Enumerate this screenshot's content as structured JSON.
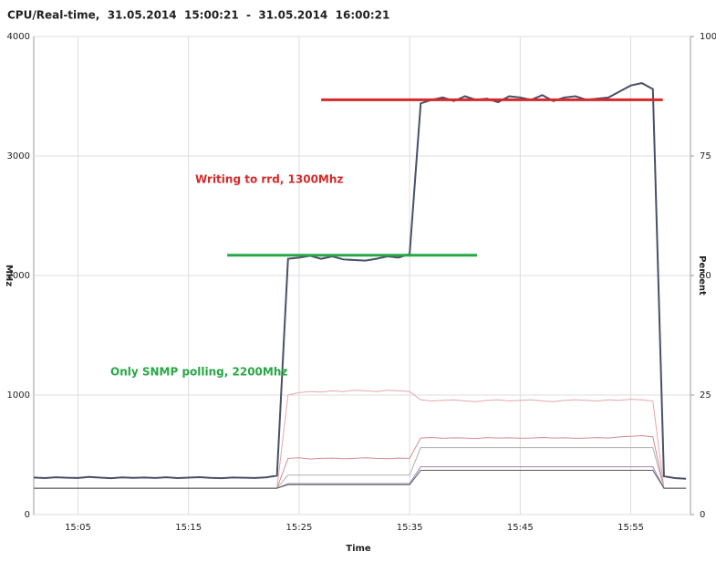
{
  "chart_data": {
    "type": "line",
    "title": "CPU/Real-time,  31.05.2014  15:00:21  -  31.05.2014  16:00:21",
    "y_label": "MHz",
    "y2_label": "Percent",
    "x_label": "Time",
    "xlim": [
      1,
      60.4
    ],
    "xticks": [
      {
        "value": 5,
        "label": "15:05"
      },
      {
        "value": 15,
        "label": "15:15"
      },
      {
        "value": 25,
        "label": "15:25"
      },
      {
        "value": 35,
        "label": "15:35"
      },
      {
        "value": 45,
        "label": "15:45"
      },
      {
        "value": 55,
        "label": "15:55"
      }
    ],
    "ylim": [
      0,
      4000
    ],
    "yticks": [
      0,
      1000,
      2000,
      3000,
      4000
    ],
    "y2lim": [
      0,
      100
    ],
    "y2ticks": [
      0,
      25,
      50,
      75,
      100
    ],
    "grid": true,
    "x": [
      1,
      2,
      3,
      4,
      5,
      6,
      7,
      8,
      9,
      10,
      11,
      12,
      13,
      14,
      15,
      16,
      17,
      18,
      19,
      20,
      21,
      22,
      23,
      24,
      25,
      26,
      27,
      28,
      29,
      30,
      31,
      32,
      33,
      34,
      35,
      36,
      37,
      38,
      39,
      40,
      41,
      42,
      43,
      44,
      45,
      46,
      47,
      48,
      49,
      50,
      51,
      52,
      53,
      54,
      55,
      56,
      57,
      58,
      59,
      60
    ],
    "series": [
      {
        "color": "#e4a6ae",
        "values": [
          220,
          220,
          220,
          220,
          220,
          220,
          220,
          220,
          220,
          220,
          220,
          220,
          220,
          220,
          220,
          220,
          220,
          220,
          220,
          220,
          220,
          220,
          220,
          1000,
          1020,
          1030,
          1025,
          1035,
          1030,
          1040,
          1035,
          1030,
          1040,
          1035,
          1030,
          960,
          950,
          955,
          960,
          950,
          945,
          955,
          960,
          950,
          955,
          960,
          950,
          945,
          955,
          960,
          955,
          950,
          960,
          955,
          965,
          960,
          950,
          220,
          220,
          220
        ]
      },
      {
        "color": "#d38a92",
        "values": [
          220,
          220,
          220,
          220,
          220,
          220,
          220,
          220,
          220,
          220,
          220,
          220,
          220,
          220,
          220,
          220,
          220,
          220,
          220,
          220,
          220,
          220,
          220,
          470,
          475,
          465,
          470,
          472,
          468,
          470,
          475,
          470,
          468,
          472,
          470,
          640,
          645,
          638,
          642,
          640,
          636,
          644,
          640,
          642,
          638,
          640,
          645,
          640,
          642,
          638,
          640,
          644,
          640,
          650,
          655,
          660,
          650,
          220,
          220,
          220
        ]
      },
      {
        "color": "#b0b0b0",
        "values": [
          220,
          220,
          220,
          220,
          220,
          220,
          220,
          220,
          220,
          220,
          220,
          220,
          220,
          220,
          220,
          220,
          220,
          220,
          220,
          220,
          220,
          220,
          220,
          330,
          330,
          330,
          330,
          330,
          330,
          330,
          330,
          330,
          330,
          330,
          330,
          560,
          560,
          560,
          560,
          560,
          560,
          560,
          560,
          560,
          560,
          560,
          560,
          560,
          560,
          560,
          560,
          560,
          560,
          560,
          560,
          560,
          560,
          220,
          220,
          220
        ]
      },
      {
        "color": "#9a8ab8",
        "values": [
          220,
          220,
          220,
          220,
          220,
          220,
          220,
          220,
          220,
          220,
          220,
          220,
          220,
          220,
          220,
          220,
          220,
          220,
          220,
          220,
          220,
          220,
          220,
          260,
          260,
          260,
          260,
          260,
          260,
          260,
          260,
          260,
          260,
          260,
          260,
          400,
          400,
          400,
          400,
          400,
          400,
          400,
          400,
          400,
          400,
          400,
          400,
          400,
          400,
          400,
          400,
          400,
          400,
          400,
          400,
          400,
          400,
          220,
          220,
          220
        ]
      },
      {
        "color": "#5a5a5a",
        "values": [
          220,
          220,
          220,
          220,
          220,
          220,
          220,
          220,
          220,
          220,
          220,
          220,
          220,
          220,
          220,
          220,
          220,
          220,
          220,
          220,
          220,
          220,
          220,
          250,
          250,
          250,
          250,
          250,
          250,
          250,
          250,
          250,
          250,
          250,
          250,
          370,
          370,
          370,
          370,
          370,
          370,
          370,
          370,
          370,
          370,
          370,
          370,
          370,
          370,
          370,
          370,
          370,
          370,
          370,
          370,
          370,
          370,
          220,
          220,
          220
        ]
      },
      {
        "color": "#4a5068",
        "values": [
          310,
          305,
          312,
          308,
          306,
          315,
          309,
          304,
          311,
          307,
          310,
          306,
          312,
          305,
          309,
          313,
          307,
          304,
          310,
          308,
          306,
          311,
          325,
          2140,
          2150,
          2165,
          2140,
          2160,
          2135,
          2130,
          2125,
          2140,
          2160,
          2150,
          2180,
          3440,
          3470,
          3490,
          3460,
          3500,
          3470,
          3480,
          3450,
          3500,
          3490,
          3470,
          3510,
          3460,
          3490,
          3500,
          3470,
          3480,
          3490,
          3540,
          3590,
          3610,
          3560,
          320,
          305,
          300
        ]
      }
    ],
    "reference_lines": [
      {
        "label": "Writing to rrd, 1300Mhz",
        "color": "#d42a2a",
        "value": 3470,
        "xrange": [
          27,
          57.9
        ]
      },
      {
        "label": "Only SNMP polling, 2200Mhz",
        "color": "#27a745",
        "value": 2170,
        "xrange": [
          18.5,
          41.1
        ]
      }
    ]
  }
}
